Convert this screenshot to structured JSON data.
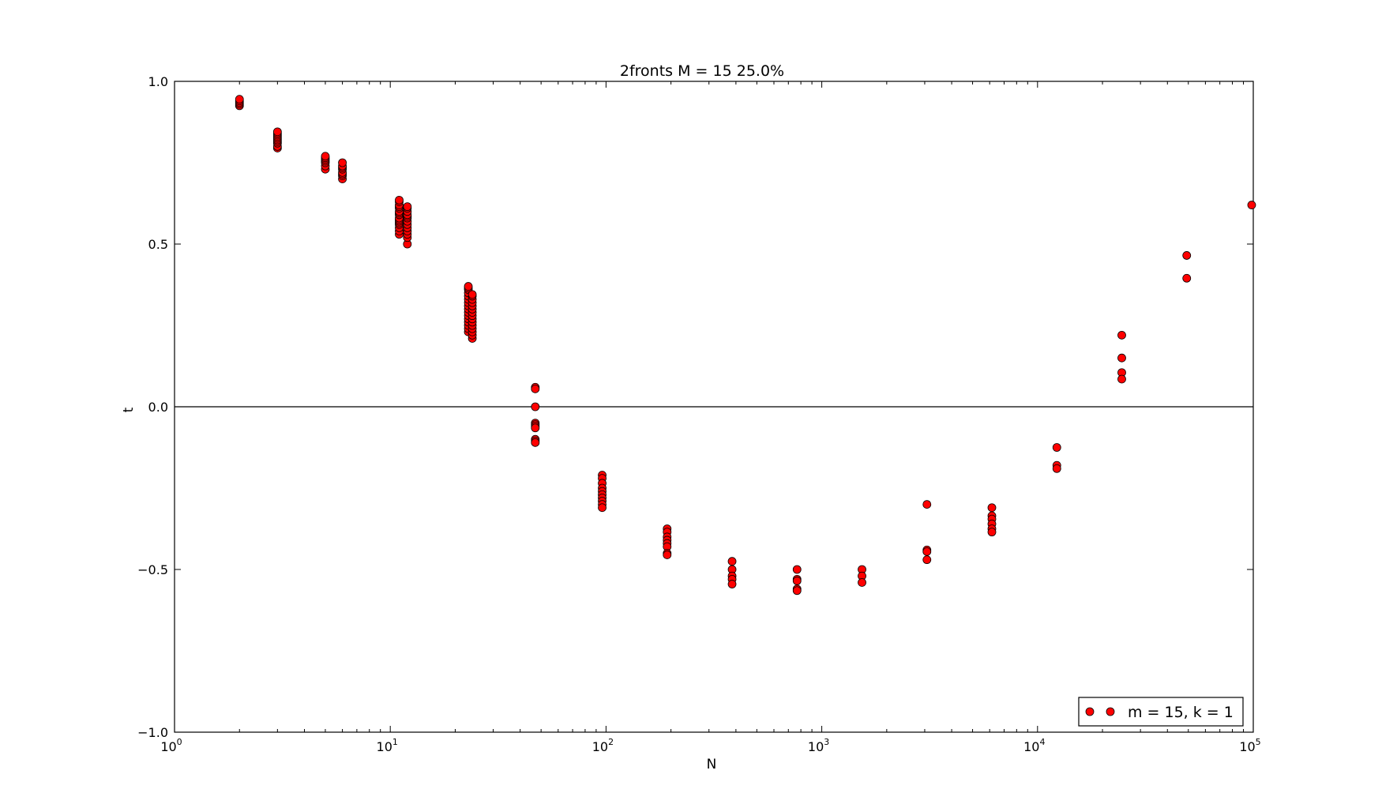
{
  "chart_data": {
    "type": "scatter",
    "title": "2fronts M = 15 25.0%",
    "xlabel": "N",
    "ylabel": "t",
    "xscale": "log",
    "xlim": [
      1,
      100000
    ],
    "ylim": [
      -1.0,
      1.0
    ],
    "grid": false,
    "zero_line": true,
    "legend_position": "lower-right",
    "x_tick_labels": [
      {
        "base": "10",
        "exp": "0"
      },
      {
        "base": "10",
        "exp": "1"
      },
      {
        "base": "10",
        "exp": "2"
      },
      {
        "base": "10",
        "exp": "3"
      },
      {
        "base": "10",
        "exp": "4"
      },
      {
        "base": "10",
        "exp": "5"
      }
    ],
    "y_ticks": [
      {
        "value": 1.0,
        "label": "1.0"
      },
      {
        "value": 0.5,
        "label": "0.5"
      },
      {
        "value": 0.0,
        "label": "0.0"
      },
      {
        "value": -0.5,
        "label": "−0.5"
      },
      {
        "value": -1.0,
        "label": "−1.0"
      }
    ],
    "series": [
      {
        "name": "m = 15, k = 1",
        "color": "#ff0000",
        "edge_color": "#000000",
        "points": [
          {
            "x": 2,
            "y": [
              0.925,
              0.93,
              0.935,
              0.94,
              0.945
            ]
          },
          {
            "x": 3,
            "y": [
              0.795,
              0.8,
              0.81,
              0.815,
              0.82,
              0.825,
              0.83,
              0.835,
              0.84,
              0.845
            ]
          },
          {
            "x": 5,
            "y": [
              0.73,
              0.74,
              0.75,
              0.755,
              0.76,
              0.765,
              0.77
            ]
          },
          {
            "x": 6,
            "y": [
              0.7,
              0.71,
              0.715,
              0.72,
              0.73,
              0.735,
              0.74,
              0.75
            ]
          },
          {
            "x": 11,
            "y": [
              0.53,
              0.54,
              0.55,
              0.56,
              0.565,
              0.57,
              0.575,
              0.58,
              0.59,
              0.595,
              0.6,
              0.61,
              0.615,
              0.62,
              0.63,
              0.635
            ]
          },
          {
            "x": 12,
            "y": [
              0.5,
              0.52,
              0.53,
              0.54,
              0.55,
              0.56,
              0.57,
              0.58,
              0.585,
              0.59,
              0.6,
              0.61,
              0.615
            ]
          },
          {
            "x": 23,
            "y": [
              0.23,
              0.24,
              0.25,
              0.26,
              0.27,
              0.28,
              0.29,
              0.3,
              0.31,
              0.32,
              0.33,
              0.34,
              0.35,
              0.36,
              0.365,
              0.37
            ]
          },
          {
            "x": 24,
            "y": [
              0.21,
              0.22,
              0.23,
              0.24,
              0.25,
              0.26,
              0.27,
              0.28,
              0.29,
              0.3,
              0.31,
              0.32,
              0.33,
              0.34,
              0.345
            ]
          },
          {
            "x": 47,
            "y": [
              0.06,
              0.055,
              0.0,
              -0.05,
              -0.055,
              -0.06,
              -0.065,
              -0.1,
              -0.105,
              -0.11
            ]
          },
          {
            "x": 96,
            "y": [
              -0.21,
              -0.22,
              -0.235,
              -0.25,
              -0.26,
              -0.27,
              -0.28,
              -0.29,
              -0.3,
              -0.31
            ]
          },
          {
            "x": 192,
            "y": [
              -0.375,
              -0.385,
              -0.4,
              -0.41,
              -0.42,
              -0.43,
              -0.45,
              -0.455
            ]
          },
          {
            "x": 384,
            "y": [
              -0.475,
              -0.5,
              -0.52,
              -0.53,
              -0.545
            ]
          },
          {
            "x": 768,
            "y": [
              -0.5,
              -0.53,
              -0.535,
              -0.56,
              -0.565
            ]
          },
          {
            "x": 1536,
            "y": [
              -0.5,
              -0.52,
              -0.54
            ]
          },
          {
            "x": 3072,
            "y": [
              -0.3,
              -0.44,
              -0.445,
              -0.47
            ]
          },
          {
            "x": 6144,
            "y": [
              -0.31,
              -0.335,
              -0.345,
              -0.36,
              -0.375,
              -0.385
            ]
          },
          {
            "x": 12288,
            "y": [
              -0.125,
              -0.18,
              -0.19
            ]
          },
          {
            "x": 24576,
            "y": [
              0.22,
              0.15,
              0.105,
              0.085
            ]
          },
          {
            "x": 49152,
            "y": [
              0.465,
              0.395
            ]
          },
          {
            "x": 98304,
            "y": [
              0.62
            ]
          }
        ]
      }
    ]
  }
}
